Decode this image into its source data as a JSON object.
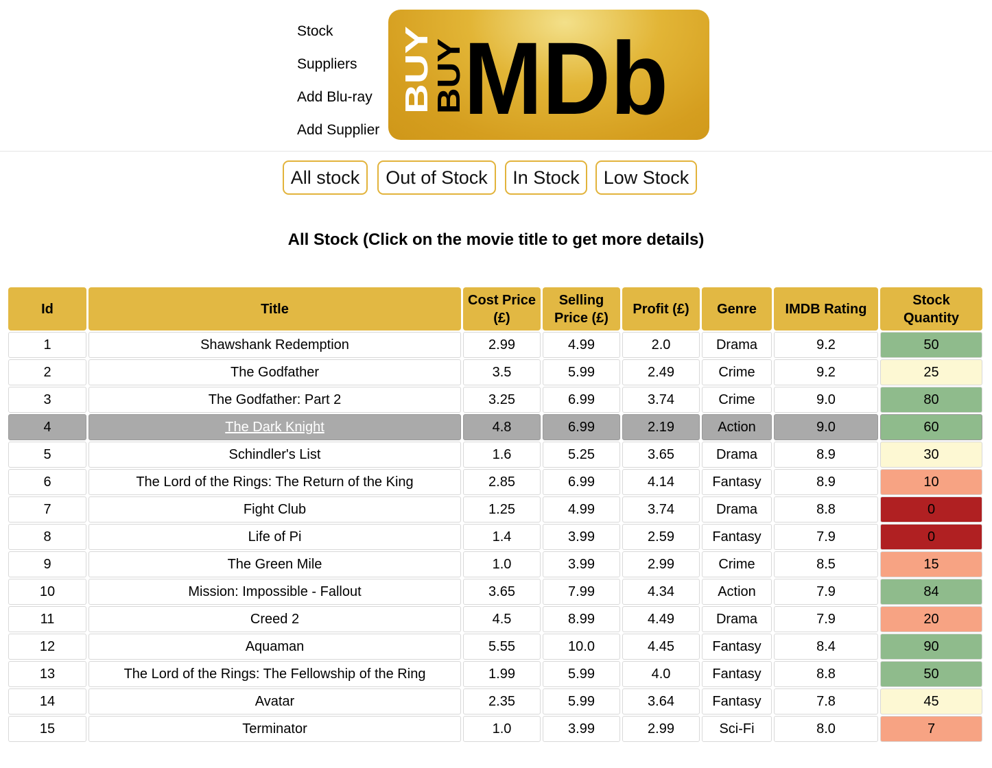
{
  "nav": {
    "items": [
      "Stock",
      "Suppliers",
      "Add Blu-ray",
      "Add Supplier"
    ]
  },
  "logo": {
    "top_word": "BUY",
    "shadow_word": "BUY",
    "main_word": "MDb"
  },
  "filters": [
    "All stock",
    "Out of Stock",
    "In Stock",
    "Low Stock"
  ],
  "heading": "All Stock (Click on the movie title to get more details)",
  "table": {
    "headers": [
      "Id",
      "Title",
      "Cost Price (£)",
      "Selling Price (£)",
      "Profit (£)",
      "Genre",
      "IMDB Rating",
      "Stock Quantity"
    ],
    "rows": [
      {
        "id": "1",
        "title": "Shawshank Redemption",
        "cost": "2.99",
        "sell": "4.99",
        "profit": "2.0",
        "genre": "Drama",
        "rating": "9.2",
        "qty": "50",
        "level": "high"
      },
      {
        "id": "2",
        "title": "The Godfather",
        "cost": "3.5",
        "sell": "5.99",
        "profit": "2.49",
        "genre": "Crime",
        "rating": "9.2",
        "qty": "25",
        "level": "mid"
      },
      {
        "id": "3",
        "title": "The Godfather: Part 2",
        "cost": "3.25",
        "sell": "6.99",
        "profit": "3.74",
        "genre": "Crime",
        "rating": "9.0",
        "qty": "80",
        "level": "high"
      },
      {
        "id": "4",
        "title": "The Dark Knight",
        "cost": "4.8",
        "sell": "6.99",
        "profit": "2.19",
        "genre": "Action",
        "rating": "9.0",
        "qty": "60",
        "level": "high",
        "hover": true
      },
      {
        "id": "5",
        "title": "Schindler's List",
        "cost": "1.6",
        "sell": "5.25",
        "profit": "3.65",
        "genre": "Drama",
        "rating": "8.9",
        "qty": "30",
        "level": "mid"
      },
      {
        "id": "6",
        "title": "The Lord of the Rings: The Return of the King",
        "cost": "2.85",
        "sell": "6.99",
        "profit": "4.14",
        "genre": "Fantasy",
        "rating": "8.9",
        "qty": "10",
        "level": "low"
      },
      {
        "id": "7",
        "title": "Fight Club",
        "cost": "1.25",
        "sell": "4.99",
        "profit": "3.74",
        "genre": "Drama",
        "rating": "8.8",
        "qty": "0",
        "level": "out"
      },
      {
        "id": "8",
        "title": "Life of Pi",
        "cost": "1.4",
        "sell": "3.99",
        "profit": "2.59",
        "genre": "Fantasy",
        "rating": "7.9",
        "qty": "0",
        "level": "out"
      },
      {
        "id": "9",
        "title": "The Green Mile",
        "cost": "1.0",
        "sell": "3.99",
        "profit": "2.99",
        "genre": "Crime",
        "rating": "8.5",
        "qty": "15",
        "level": "low"
      },
      {
        "id": "10",
        "title": "Mission: Impossible - Fallout",
        "cost": "3.65",
        "sell": "7.99",
        "profit": "4.34",
        "genre": "Action",
        "rating": "7.9",
        "qty": "84",
        "level": "high"
      },
      {
        "id": "11",
        "title": "Creed 2",
        "cost": "4.5",
        "sell": "8.99",
        "profit": "4.49",
        "genre": "Drama",
        "rating": "7.9",
        "qty": "20",
        "level": "low"
      },
      {
        "id": "12",
        "title": "Aquaman",
        "cost": "5.55",
        "sell": "10.0",
        "profit": "4.45",
        "genre": "Fantasy",
        "rating": "8.4",
        "qty": "90",
        "level": "high"
      },
      {
        "id": "13",
        "title": "The Lord of the Rings: The Fellowship of the Ring",
        "cost": "1.99",
        "sell": "5.99",
        "profit": "4.0",
        "genre": "Fantasy",
        "rating": "8.8",
        "qty": "50",
        "level": "high"
      },
      {
        "id": "14",
        "title": "Avatar",
        "cost": "2.35",
        "sell": "5.99",
        "profit": "3.64",
        "genre": "Fantasy",
        "rating": "7.8",
        "qty": "45",
        "level": "mid"
      },
      {
        "id": "15",
        "title": "Terminator",
        "cost": "1.0",
        "sell": "3.99",
        "profit": "2.99",
        "genre": "Sci-Fi",
        "rating": "8.0",
        "qty": "7",
        "level": "low"
      }
    ]
  }
}
